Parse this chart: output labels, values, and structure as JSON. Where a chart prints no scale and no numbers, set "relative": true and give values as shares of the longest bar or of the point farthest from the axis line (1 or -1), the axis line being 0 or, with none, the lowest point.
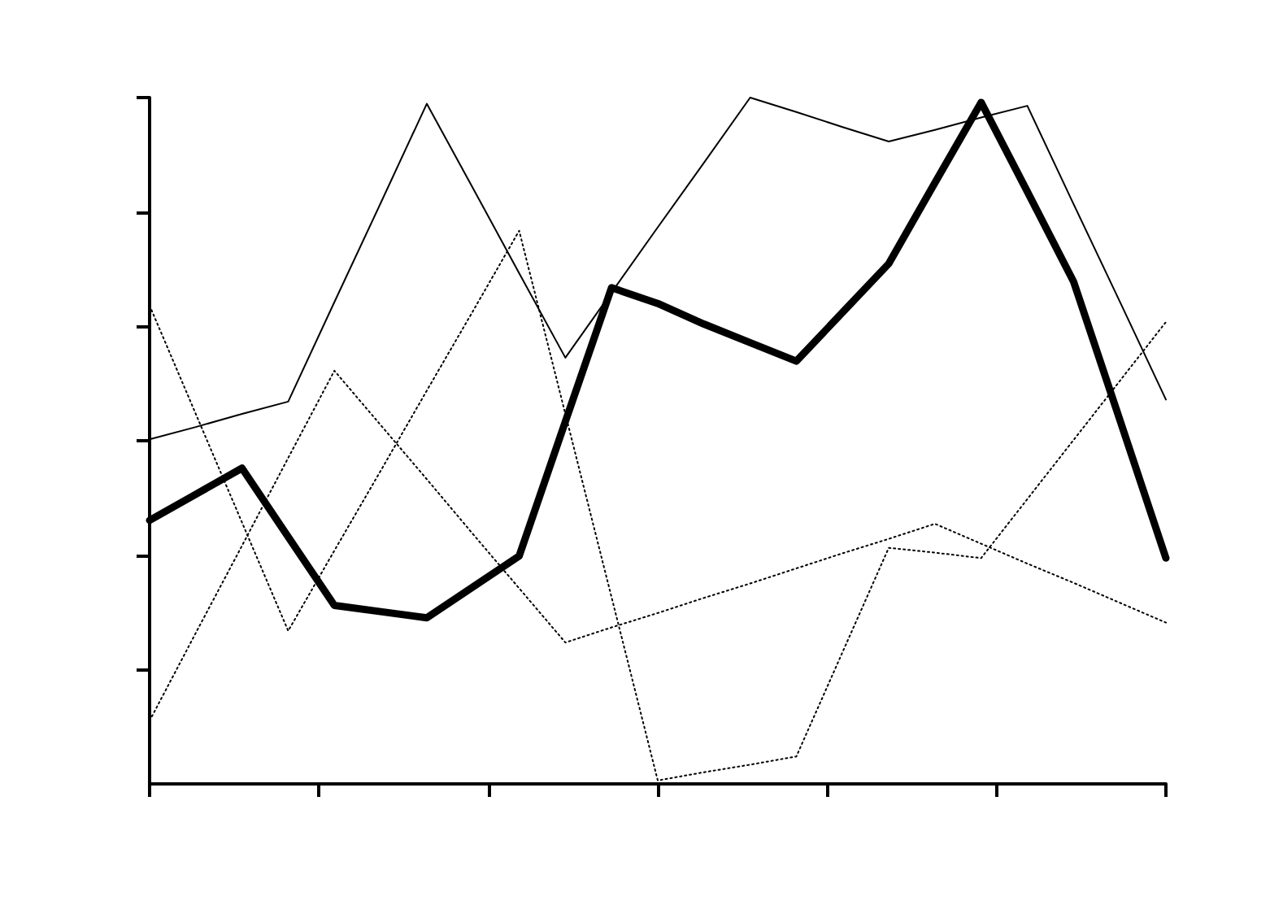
{
  "chart_data": {
    "type": "line",
    "relative": true,
    "marker": "none",
    "categories": [
      null,
      null,
      null,
      null,
      null,
      null,
      null,
      null,
      null,
      null,
      null,
      null,
      null,
      null,
      null,
      null,
      null,
      null,
      null,
      null,
      null,
      null,
      null
    ],
    "series": [
      {
        "color": "#000000",
        "line_style": "solid",
        "values": [
          0.502,
          0.52,
          0.539,
          0.557,
          0.702,
          0.846,
          0.991,
          0.868,
          0.744,
          0.621,
          0.716,
          0.811,
          0.905,
          1.0,
          0.979,
          0.957,
          0.936,
          0.953,
          0.971,
          0.988,
          0.845,
          0.703,
          0.56
        ]
      },
      {
        "color": "#000000",
        "line_style": "dotted",
        "values": [
          0.697,
          0.539,
          0.381,
          0.223,
          0.34,
          0.456,
          0.573,
          0.689,
          0.806,
          0.539,
          0.272,
          0.005,
          0.017,
          0.028,
          0.04,
          0.192,
          0.344,
          0.337,
          0.329,
          0.415,
          0.501,
          0.587,
          0.673
        ]
      },
      {
        "color": "#000000",
        "line_style": "dotted",
        "values": [
          0.092,
          0.22,
          0.347,
          0.475,
          0.602,
          0.523,
          0.444,
          0.364,
          0.285,
          0.206,
          0.228,
          0.249,
          0.271,
          0.292,
          0.314,
          0.336,
          0.357,
          0.379,
          0.35,
          0.321,
          0.293,
          0.264,
          0.235
        ]
      },
      {
        "color": "#000000",
        "line_style": "solid",
        "values": [
          0.384,
          0.422,
          0.46,
          0.36,
          0.26,
          0.251,
          0.242,
          0.287,
          0.332,
          0.528,
          0.723,
          0.7,
          0.67,
          0.643,
          0.616,
          0.687,
          0.758,
          0.876,
          0.993,
          0.863,
          0.732,
          0.531,
          0.329
        ]
      }
    ]
  }
}
